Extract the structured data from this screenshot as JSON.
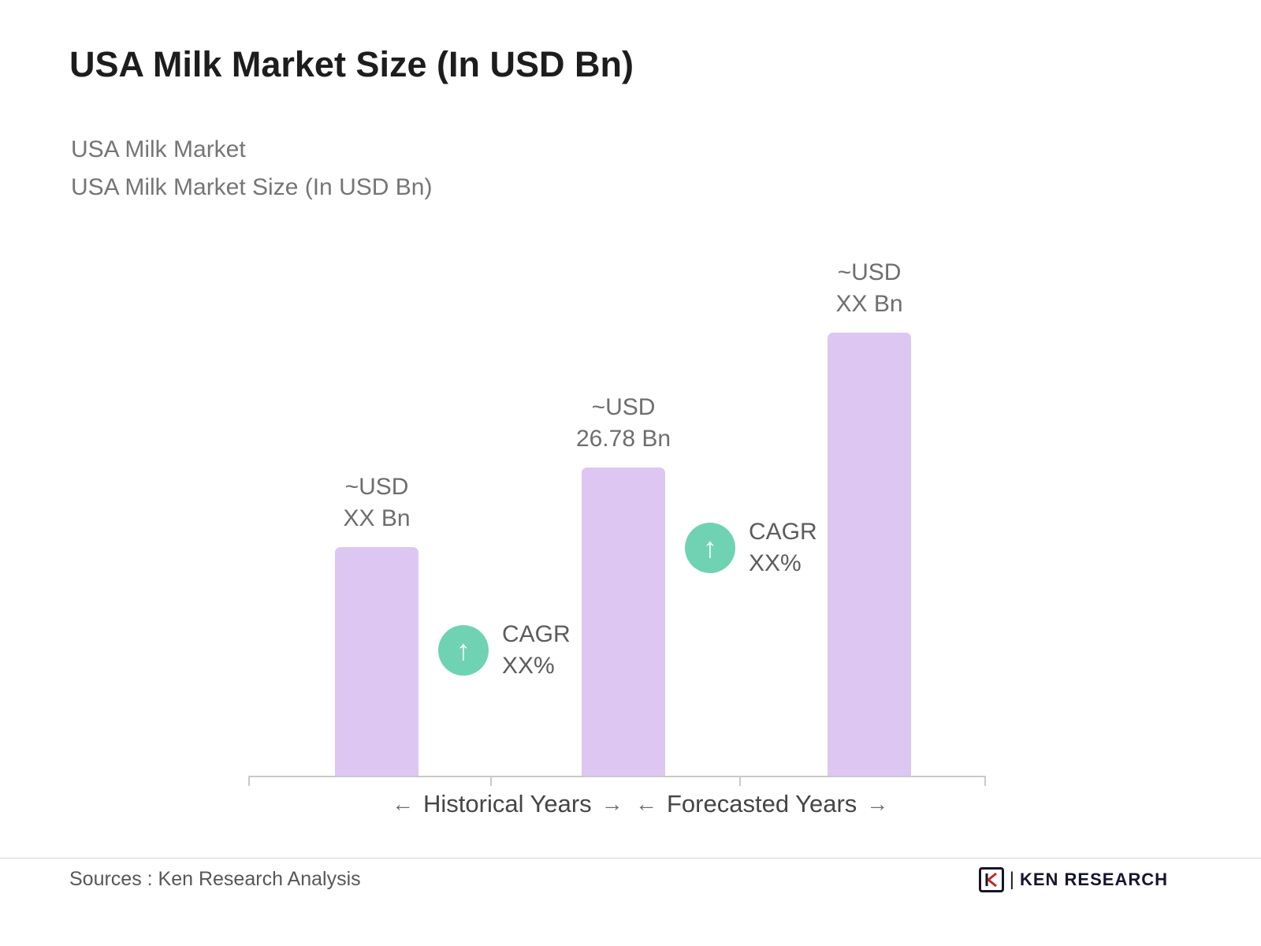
{
  "chart_data": {
    "type": "bar",
    "title": "USA Milk Market Size (In USD Bn)",
    "subtitle_lines": [
      "USA Milk Market",
      "USA Milk Market Size (In USD Bn)"
    ],
    "categories": [
      "",
      "",
      ""
    ],
    "values": [
      19.9,
      26.78,
      41.9
    ],
    "value_labels": [
      "~USD\nXX Bn",
      "~USD\n26.78 Bn",
      "~USD\nXX Bn"
    ],
    "xlabel": "",
    "ylabel": "",
    "ylim": [
      0,
      45
    ],
    "grid": false,
    "legend": false,
    "bar_color": "#DEC6F2",
    "annotations": [
      "CAGR\nXX%",
      "CAGR\nXX%"
    ],
    "axis_group_labels": [
      "Historical Years",
      "Forecasted Years"
    ]
  },
  "colors": {
    "bar": "#DEC6F2",
    "cagr_circle": "#6FD3B3",
    "title_text": "#1D1D1D",
    "subtitle_text": "#757575",
    "axis": "#C9C9C9",
    "logo_dark": "#15152D",
    "logo_red": "#C0272D"
  },
  "icons": {
    "up_arrow": "↑",
    "left_arrow": "←",
    "right_arrow": "→"
  },
  "footer": {
    "sources": "Sources : Ken Research Analysis",
    "logo_divider": "|",
    "logo_text": "KEN RESEARCH"
  }
}
